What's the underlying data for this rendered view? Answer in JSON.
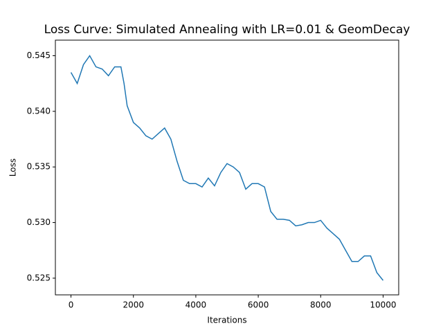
{
  "chart_data": {
    "type": "line",
    "title": "Loss Curve: Simulated Annealing with LR=0.01 & GeomDecay",
    "x_label": "Iterations",
    "y_label": "Loss",
    "x": [
      0,
      200,
      400,
      600,
      800,
      1000,
      1200,
      1400,
      1600,
      1700,
      1800,
      2000,
      2200,
      2400,
      2600,
      2800,
      3000,
      3200,
      3400,
      3600,
      3800,
      4000,
      4200,
      4400,
      4600,
      4800,
      5000,
      5200,
      5400,
      5600,
      5800,
      6000,
      6200,
      6400,
      6600,
      6800,
      7000,
      7200,
      7400,
      7600,
      7800,
      8000,
      8200,
      8400,
      8600,
      8800,
      9000,
      9200,
      9400,
      9600,
      9800,
      10000
    ],
    "series": [
      {
        "name": "Loss",
        "color": "#1f77b4",
        "values": [
          0.5435,
          0.5425,
          0.5442,
          0.545,
          0.544,
          0.5438,
          0.5432,
          0.544,
          0.544,
          0.5425,
          0.5405,
          0.539,
          0.5385,
          0.5378,
          0.5375,
          0.538,
          0.5385,
          0.5375,
          0.5355,
          0.5338,
          0.5335,
          0.5335,
          0.5332,
          0.534,
          0.5333,
          0.5345,
          0.5353,
          0.535,
          0.5345,
          0.533,
          0.5335,
          0.5335,
          0.5332,
          0.531,
          0.5303,
          0.5303,
          0.5302,
          0.5297,
          0.5298,
          0.53,
          0.53,
          0.5302,
          0.5295,
          0.529,
          0.5285,
          0.5275,
          0.5265,
          0.5265,
          0.527,
          0.527,
          0.5255,
          0.5248
        ]
      }
    ],
    "xlim": [
      -500,
      10500
    ],
    "ylim": [
      0.5235,
      0.5464
    ],
    "xticks": [
      0,
      2000,
      4000,
      6000,
      8000,
      10000
    ],
    "yticks": [
      0.525,
      {
        "value": 0.53,
        "label": "0.530"
      },
      0.535,
      {
        "value": 0.54,
        "label": "0.540"
      },
      0.545
    ]
  }
}
